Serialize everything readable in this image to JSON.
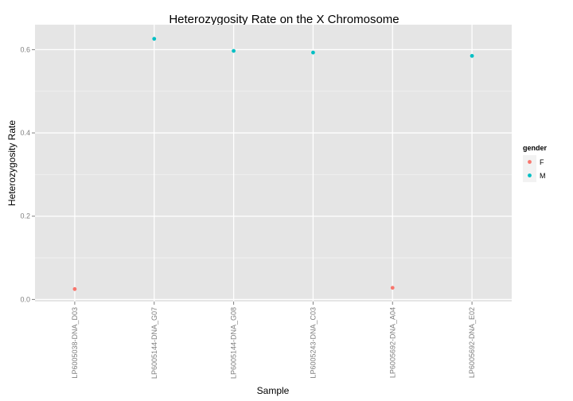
{
  "chart_data": {
    "type": "scatter",
    "title": "Heterozygosity Rate on the X Chromosome",
    "xlabel": "Sample",
    "ylabel": "Heterozygosity Rate",
    "categories": [
      "LP6005038-DNA_D03",
      "LP6005144-DNA_G07",
      "LP6005144-DNA_G08",
      "LP6005243-DNA_C03",
      "LP6005692-DNA_A04",
      "LP6005692-DNA_E02"
    ],
    "points": [
      {
        "sample": "LP6005038-DNA_D03",
        "rate": 0.025,
        "gender": "F"
      },
      {
        "sample": "LP6005144-DNA_G07",
        "rate": 0.626,
        "gender": "M"
      },
      {
        "sample": "LP6005144-DNA_G08",
        "rate": 0.597,
        "gender": "M"
      },
      {
        "sample": "LP6005243-DNA_C03",
        "rate": 0.593,
        "gender": "M"
      },
      {
        "sample": "LP6005692-DNA_A04",
        "rate": 0.028,
        "gender": "F"
      },
      {
        "sample": "LP6005692-DNA_E02",
        "rate": 0.585,
        "gender": "M"
      }
    ],
    "ylim": [
      -0.005,
      0.66
    ],
    "yticks": [
      0.0,
      0.2,
      0.4,
      0.6
    ],
    "ytick_labels": [
      "0.0",
      "0.2",
      "0.4",
      "0.6"
    ],
    "grid": true,
    "legend": {
      "title": "gender",
      "placement": "right",
      "entries": [
        {
          "label": "F",
          "color": "#F8766D"
        },
        {
          "label": "M",
          "color": "#00BFC4"
        }
      ]
    },
    "colors": {
      "F": "#F8766D",
      "M": "#00BFC4"
    },
    "panel_background": "#E5E5E5"
  }
}
